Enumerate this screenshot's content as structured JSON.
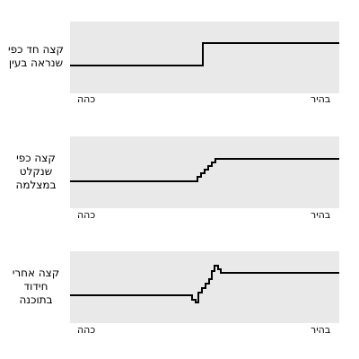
{
  "panels": [
    {
      "label_lines": [
        "קצה חד כפי",
        "שנראה בעין"
      ],
      "dark_label": "כהה",
      "bright_label": "בהיר"
    },
    {
      "label_lines": [
        "קצה כפי",
        "שנקלט",
        "במצלמה"
      ],
      "dark_label": "כהה",
      "bright_label": "בהיר"
    },
    {
      "label_lines": [
        "קצה אחרי",
        "חידוד",
        "בתוכנה"
      ],
      "dark_label": "כהה",
      "bright_label": "בהיר"
    }
  ]
}
